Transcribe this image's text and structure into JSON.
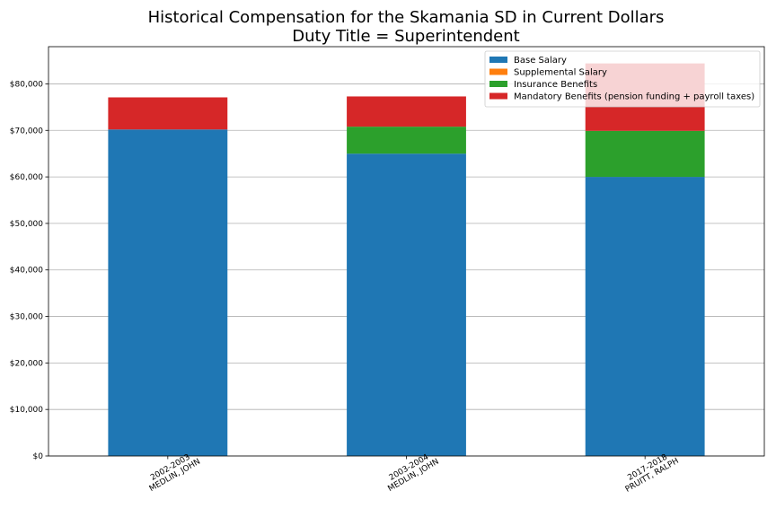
{
  "chart_data": {
    "type": "bar",
    "stacked": true,
    "title": "Historical Compensation for the Skamania SD in Current Dollars",
    "subtitle": "Duty Title = Superintendent",
    "xlabel": "",
    "ylabel": "",
    "categories": [
      [
        "2002-2003",
        "MEDLIN, JOHN"
      ],
      [
        "2003-2004",
        "MEDLIN, JOHN"
      ],
      [
        "2017-2018",
        "PRUITT, RALPH"
      ]
    ],
    "series": [
      {
        "name": "Base Salary",
        "color": "#1f77b4",
        "values": [
          70200,
          65000,
          60000
        ]
      },
      {
        "name": "Supplemental Salary",
        "color": "#ff7f0e",
        "values": [
          0,
          0,
          0
        ]
      },
      {
        "name": "Insurance Benefits",
        "color": "#2ca02c",
        "values": [
          0,
          5800,
          9900
        ]
      },
      {
        "name": "Mandatory Benefits (pension funding + payroll taxes)",
        "color": "#d62728",
        "values": [
          6900,
          6500,
          14500
        ]
      }
    ],
    "ylim": [
      0,
      88000
    ],
    "yticks": [
      0,
      10000,
      20000,
      30000,
      40000,
      50000,
      60000,
      70000,
      80000
    ],
    "ytick_labels": [
      "$0",
      "$10,000",
      "$20,000",
      "$30,000",
      "$40,000",
      "$50,000",
      "$60,000",
      "$70,000",
      "$80,000"
    ],
    "grid": "horizontal",
    "legend_position": "top-right"
  }
}
